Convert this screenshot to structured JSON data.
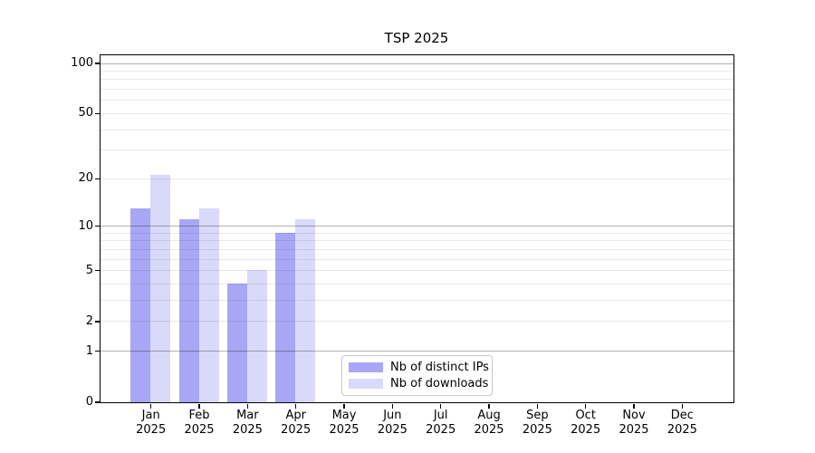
{
  "figure": {
    "title": "TSP 2025"
  },
  "chart_data": {
    "type": "bar",
    "title": "TSP 2025",
    "y_axis_scale": "log10(1+value)",
    "ylim": [
      0,
      112
    ],
    "grid": true,
    "categories": [
      "Jan",
      "Feb",
      "Mar",
      "Apr",
      "May",
      "Jun",
      "Jul",
      "Aug",
      "Sep",
      "Oct",
      "Nov",
      "Dec"
    ],
    "x_tick_year": "2025",
    "series": [
      {
        "name": "Nb of distinct IPs",
        "color": "#a7a7f5",
        "values": [
          13,
          11,
          4,
          9,
          0,
          0,
          0,
          0,
          0,
          0,
          0,
          0
        ]
      },
      {
        "name": "Nb of downloads",
        "color": "#d9d9f9",
        "values": [
          21,
          13,
          5,
          11,
          0,
          0,
          0,
          0,
          0,
          0,
          0,
          0
        ]
      }
    ],
    "y_tick_values": [
      0,
      1,
      2,
      5,
      10,
      20,
      50,
      100
    ],
    "y_tick_labels": [
      "0",
      "1",
      "2",
      "5",
      "10",
      "20",
      "50",
      "100"
    ],
    "y_major_gridlines": [
      1,
      10,
      100
    ],
    "y_minor_gridlines": [
      2,
      3,
      4,
      5,
      6,
      7,
      8,
      9,
      20,
      30,
      40,
      50,
      60,
      70,
      80,
      90
    ],
    "legend_position": "lower-center"
  },
  "legend": {
    "items": [
      {
        "label": "Nb of distinct IPs",
        "color": "#a7a7f5"
      },
      {
        "label": "Nb of downloads",
        "color": "#d9d9f9"
      }
    ]
  },
  "colors": {
    "bar_distinct_ips": "#a7a7f5",
    "bar_downloads": "#d9d9f9",
    "major_grid": "#b3b3b3",
    "minor_grid": "#e9e9e9",
    "spine": "#000000",
    "legend_border": "#c9c9c9",
    "background": "#ffffff"
  }
}
